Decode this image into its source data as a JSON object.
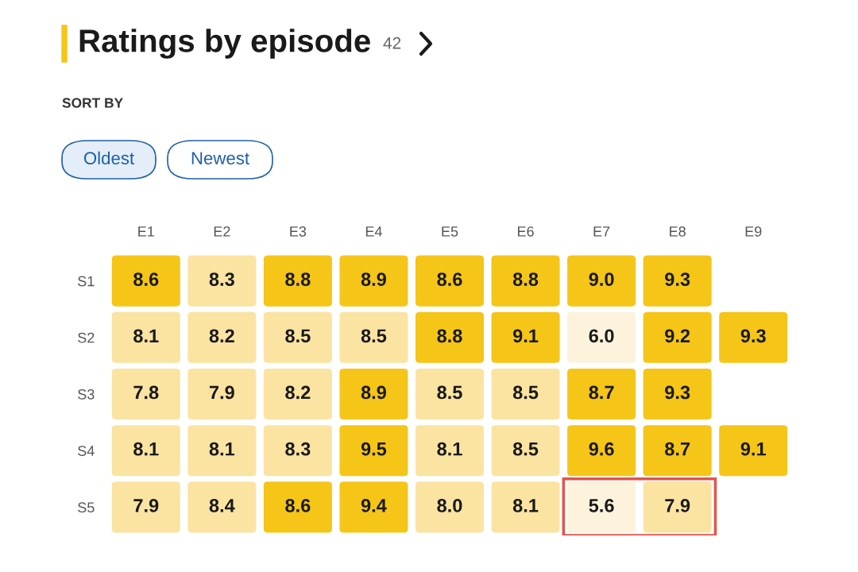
{
  "chart_data": {
    "type": "heatmap",
    "title": "Ratings by episode",
    "annotations": [
      "42",
      "SORT BY",
      "Oldest",
      "Newest"
    ],
    "categories": [
      "E1",
      "E2",
      "E3",
      "E4",
      "E5",
      "E6",
      "E7",
      "E8",
      "E9"
    ],
    "y_categories": [
      "S1",
      "S2",
      "S3",
      "S4",
      "S5"
    ],
    "cells": [
      [
        8.6,
        8.3,
        8.8,
        8.9,
        8.6,
        8.8,
        9.0,
        9.3,
        null
      ],
      [
        8.1,
        8.2,
        8.5,
        8.5,
        8.8,
        9.1,
        6.0,
        9.2,
        9.3
      ],
      [
        7.8,
        7.9,
        8.2,
        8.9,
        8.5,
        8.5,
        8.7,
        9.3,
        null
      ],
      [
        8.1,
        8.1,
        8.3,
        9.5,
        8.1,
        8.5,
        9.6,
        8.7,
        9.1
      ],
      [
        7.9,
        8.4,
        8.6,
        9.4,
        8.0,
        8.1,
        5.6,
        7.9,
        null
      ]
    ],
    "cell_labels": [
      [
        "8.6",
        "8.3",
        "8.8",
        "8.9",
        "8.6",
        "8.8",
        "9.0",
        "9.3",
        null
      ],
      [
        "8.1",
        "8.2",
        "8.5",
        "8.5",
        "8.8",
        "9.1",
        "6.0",
        "9.2",
        "9.3"
      ],
      [
        "7.8",
        "7.9",
        "8.2",
        "8.9",
        "8.5",
        "8.5",
        "8.7",
        "9.3",
        null
      ],
      [
        "8.1",
        "8.1",
        "8.3",
        "9.5",
        "8.1",
        "8.5",
        "9.6",
        "8.7",
        "9.1"
      ],
      [
        "7.9",
        "8.4",
        "8.6",
        "9.4",
        "8.0",
        "8.1",
        "5.6",
        "7.9",
        null
      ]
    ],
    "colors": [
      "#fdf3dc",
      "#fbe3a2",
      "#f5c518"
    ]
  }
}
